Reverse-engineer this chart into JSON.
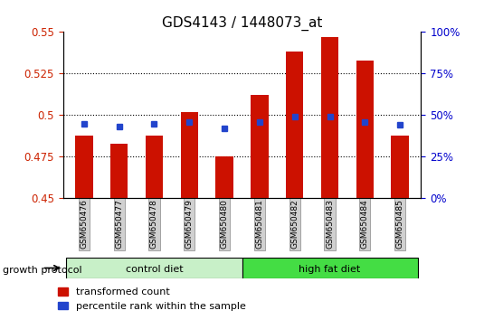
{
  "title": "GDS4143 / 1448073_at",
  "samples": [
    "GSM650476",
    "GSM650477",
    "GSM650478",
    "GSM650479",
    "GSM650480",
    "GSM650481",
    "GSM650482",
    "GSM650483",
    "GSM650484",
    "GSM650485"
  ],
  "red_values": [
    0.488,
    0.483,
    0.488,
    0.502,
    0.475,
    0.512,
    0.538,
    0.547,
    0.533,
    0.488
  ],
  "blue_values": [
    0.495,
    0.493,
    0.495,
    0.496,
    0.492,
    0.496,
    0.499,
    0.499,
    0.496,
    0.494
  ],
  "ylim_left": [
    0.45,
    0.55
  ],
  "ylim_right": [
    0,
    100
  ],
  "yticks_left": [
    0.45,
    0.475,
    0.5,
    0.525,
    0.55
  ],
  "yticks_right": [
    0,
    25,
    50,
    75,
    100
  ],
  "ytick_labels_left": [
    "0.45",
    "0.475",
    "0.5",
    "0.525",
    "0.55"
  ],
  "ytick_labels_right": [
    "0%",
    "25%",
    "50%",
    "75%",
    "100%"
  ],
  "grid_lines": [
    0.475,
    0.5,
    0.525
  ],
  "control_diet_samples": 5,
  "total_samples": 10,
  "control_color": "#c8f0c8",
  "hfd_color": "#44dd44",
  "bar_color": "#cc1100",
  "blue_marker_color": "#2244cc",
  "tick_color_left": "#cc2200",
  "tick_color_right": "#0000cc",
  "bar_width": 0.5,
  "protocol_label": "growth protocol",
  "control_label": "control diet",
  "hfd_label": "high fat diet",
  "legend_red_label": "transformed count",
  "legend_blue_label": "percentile rank within the sample",
  "sample_bg_color": "#d0d0d0",
  "title_fontsize": 11,
  "tick_fontsize": 8.5,
  "legend_fontsize": 8
}
